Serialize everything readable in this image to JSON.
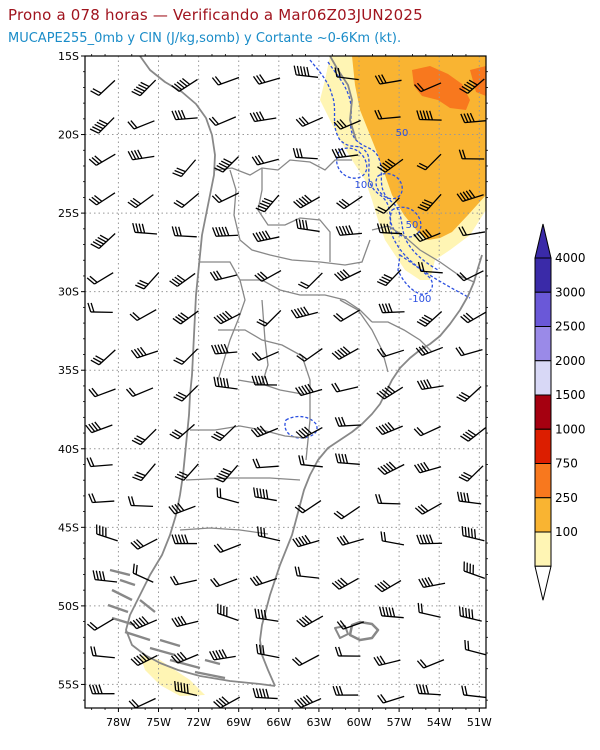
{
  "header": {
    "title": "Prono a 078 horas — Verificando a Mar06Z03JUN2025",
    "subtitle": "MUCAPE255_0mb y CIN (J/kg,somb) y Cortante ~0-6Km (kt)."
  },
  "map": {
    "lat_labels": [
      "15S",
      "20S",
      "25S",
      "30S",
      "35S",
      "40S",
      "45S",
      "50S",
      "55S"
    ],
    "lon_labels": [
      "78W",
      "75W",
      "72W",
      "69W",
      "66W",
      "63W",
      "60W",
      "57W",
      "54W",
      "51W"
    ],
    "lat_values": [
      -15,
      -20,
      -25,
      -30,
      -35,
      -40,
      -45,
      -50,
      -55
    ],
    "lon_values": [
      -78,
      -75,
      -72,
      -69,
      -66,
      -63,
      -60,
      -57,
      -54,
      -51
    ],
    "extent": {
      "lon_min": -80.5,
      "lon_max": -50.5,
      "lat_min": -56.5,
      "lat_max": -15
    },
    "cin_contour_labels": [
      "50",
      "100",
      "50",
      "-100"
    ],
    "colors": {
      "border": "#888888",
      "grid": "#999999",
      "cin_contour": "#2b4fe0",
      "contour_label": "#2b4fe0"
    }
  },
  "colorbar": {
    "labels": [
      "4000",
      "3000",
      "2500",
      "2000",
      "1500",
      "1000",
      "750",
      "250",
      "100"
    ],
    "colors": [
      "#3a2aa8",
      "#6a58d8",
      "#9a8ae8",
      "#d8d8f6",
      "#a50010",
      "#dc1e00",
      "#f8781e",
      "#f9b432",
      "#fff5b4"
    ],
    "top_triangle_color": "#3a2aa8",
    "bottom_triangle_color": "#ffffff"
  }
}
